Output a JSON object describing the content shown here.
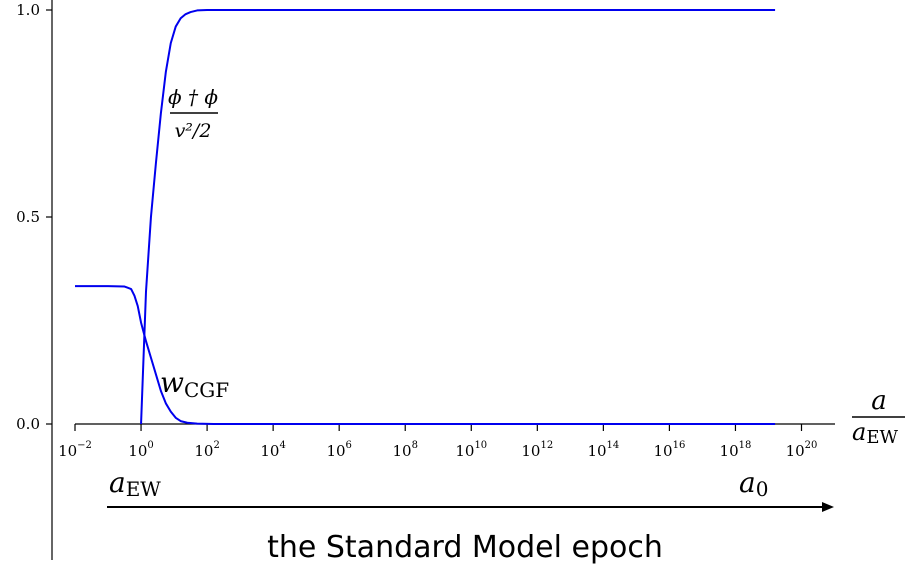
{
  "chart_data": {
    "type": "line",
    "title": "the Standard Model epoch",
    "xscale": "log",
    "xlim_log10": [
      -2,
      21
    ],
    "ylim": [
      0,
      1
    ],
    "y_ticks": [
      {
        "value": 0.0,
        "label": "0.0"
      },
      {
        "value": 0.5,
        "label": "0.5"
      },
      {
        "value": 1.0,
        "label": "1.0"
      }
    ],
    "x_ticks": [
      {
        "exp": -2,
        "base": "10",
        "sup": "−2"
      },
      {
        "exp": 0,
        "base": "10",
        "sup": "0"
      },
      {
        "exp": 2,
        "base": "10",
        "sup": "2"
      },
      {
        "exp": 4,
        "base": "10",
        "sup": "4"
      },
      {
        "exp": 6,
        "base": "10",
        "sup": "6"
      },
      {
        "exp": 8,
        "base": "10",
        "sup": "8"
      },
      {
        "exp": 10,
        "base": "10",
        "sup": "10"
      },
      {
        "exp": 12,
        "base": "10",
        "sup": "12"
      },
      {
        "exp": 14,
        "base": "10",
        "sup": "14"
      },
      {
        "exp": 16,
        "base": "10",
        "sup": "16"
      },
      {
        "exp": 18,
        "base": "10",
        "sup": "18"
      },
      {
        "exp": 20,
        "base": "10",
        "sup": "20"
      }
    ],
    "xlabel": {
      "numerator": "a",
      "denominator": "a",
      "denominator_sub": "EW"
    },
    "grid": false,
    "series": [
      {
        "name": "ϕ†ϕ / (v²/2)",
        "color": "#0000ee",
        "log10_x": [
          0.0,
          0.15,
          0.3,
          0.45,
          0.6,
          0.75,
          0.9,
          1.05,
          1.2,
          1.35,
          1.5,
          1.7,
          2,
          3,
          5,
          10,
          15,
          19.2
        ],
        "y": [
          0.0,
          0.32,
          0.5,
          0.63,
          0.75,
          0.85,
          0.92,
          0.96,
          0.98,
          0.99,
          0.995,
          0.999,
          1.0,
          1.0,
          1.0,
          1.0,
          1.0,
          1.0
        ]
      },
      {
        "name": "w_CGF",
        "color": "#0000ee",
        "log10_x": [
          -2,
          -1.5,
          -1,
          -0.5,
          -0.3,
          -0.2,
          -0.1,
          0.0,
          0.15,
          0.3,
          0.45,
          0.6,
          0.75,
          0.9,
          1.05,
          1.2,
          1.4,
          1.7,
          2.2,
          5,
          10,
          15,
          19.2
        ],
        "y": [
          0.333,
          0.333,
          0.333,
          0.332,
          0.326,
          0.31,
          0.285,
          0.245,
          0.2,
          0.16,
          0.12,
          0.08,
          0.05,
          0.03,
          0.015,
          0.007,
          0.003,
          0.001,
          0.0,
          0.0,
          0.0,
          0.0,
          0.0
        ]
      }
    ],
    "annotations": {
      "phi_label": {
        "numerator": "ϕ † ϕ",
        "denominator": "v²/2"
      },
      "wcgf_label": {
        "main": "w",
        "sub": "CGF"
      },
      "start_label": {
        "main": "a",
        "sub": "EW"
      },
      "end_label": {
        "main": "a",
        "sub": "0"
      }
    }
  }
}
